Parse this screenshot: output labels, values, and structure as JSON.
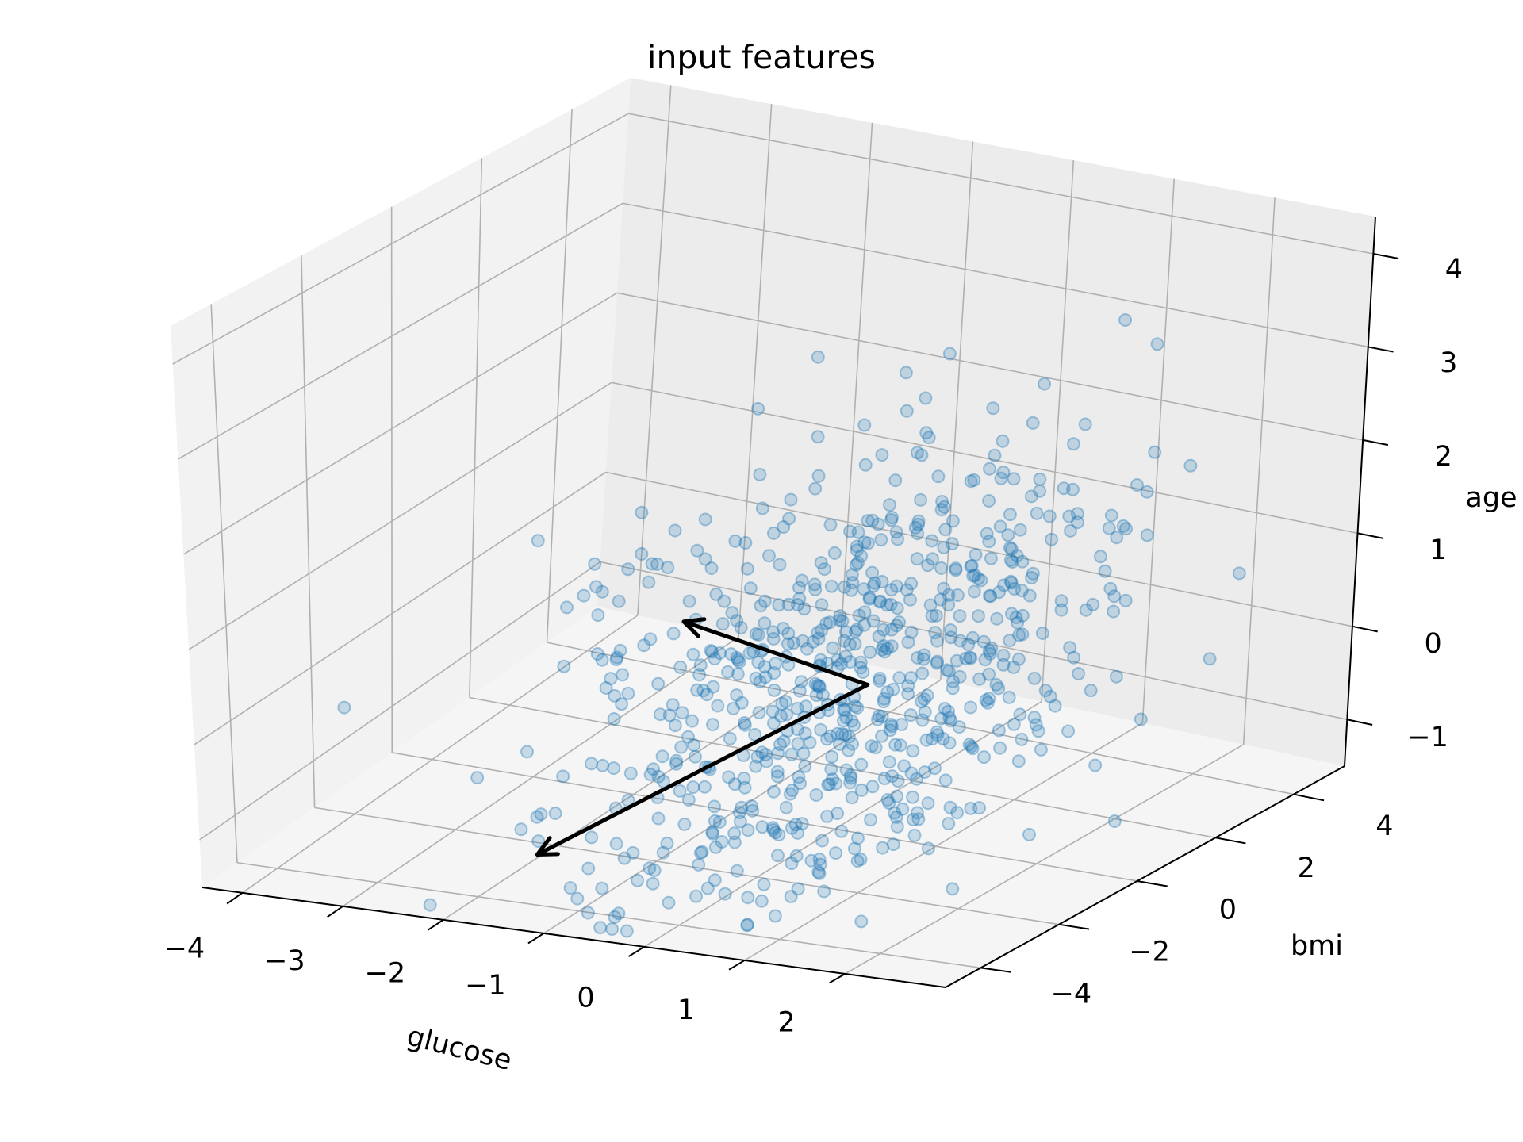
{
  "chart_data": {
    "type": "scatter3d",
    "title": "input features",
    "xlabel": "glucose",
    "ylabel": "bmi",
    "zlabel": "age",
    "xlim": [
      -4.4,
      3.0
    ],
    "ylim": [
      -4.9,
      5.3
    ],
    "zlim": [
      -1.5,
      4.4
    ],
    "xticks": [
      "−4",
      "−3",
      "−2",
      "−1",
      "0",
      "1",
      "2"
    ],
    "yticks": [
      "−4",
      "−2",
      "0",
      "2",
      "4"
    ],
    "zticks": [
      "−1",
      "0",
      "1",
      "2",
      "3",
      "4"
    ],
    "grid": true,
    "marker_color": "#1f77b4",
    "arrow_color": "#000000",
    "arrows": [
      {
        "from": [
          0.3,
          0.0,
          0.0
        ],
        "to": [
          -1.2,
          -0.8,
          0.6
        ]
      },
      {
        "from": [
          0.3,
          0.0,
          0.0
        ],
        "to": [
          -1.4,
          -4.0,
          -1.0
        ]
      }
    ],
    "n_points": 700
  }
}
